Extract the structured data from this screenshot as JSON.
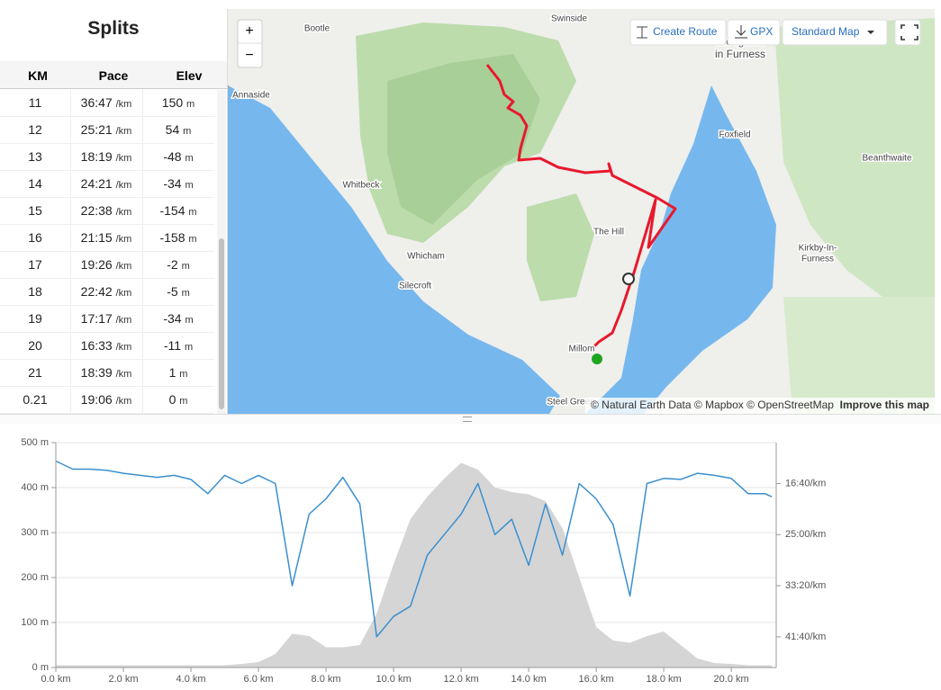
{
  "splits": {
    "title": "Splits",
    "columns": [
      "KM",
      "Pace",
      "Elev"
    ],
    "rows": [
      [
        "11",
        "36:47",
        "/km",
        "150",
        "m"
      ],
      [
        "12",
        "25:21",
        "/km",
        "54",
        "m"
      ],
      [
        "13",
        "18:19",
        "/km",
        "-48",
        "m"
      ],
      [
        "14",
        "24:21",
        "/km",
        "-34",
        "m"
      ],
      [
        "15",
        "22:38",
        "/km",
        "-154",
        "m"
      ],
      [
        "16",
        "21:15",
        "/km",
        "-158",
        "m"
      ],
      [
        "17",
        "19:26",
        "/km",
        "-2",
        "m"
      ],
      [
        "18",
        "22:42",
        "/km",
        "-5",
        "m"
      ],
      [
        "19",
        "17:17",
        "/km",
        "-34",
        "m"
      ],
      [
        "20",
        "16:33",
        "/km",
        "-11",
        "m"
      ],
      [
        "21",
        "18:39",
        "/km",
        "1",
        "m"
      ],
      [
        "0.21",
        "19:06",
        "/km",
        "0",
        "m"
      ]
    ]
  },
  "map": {
    "zoom_in": "+",
    "zoom_out": "−",
    "buttons": [
      "Create Route",
      "GPX",
      "Standard Map"
    ],
    "places": [
      "Swinside",
      "Bootle",
      "Annaside",
      "Whitbeck",
      "Whicham",
      "Silecroft",
      "The Hill",
      "Millom",
      "Steel Green",
      "Foxfield",
      "Beanthwaite",
      "Kirkby-In-",
      "Furness",
      "Broughton",
      "in Furness"
    ],
    "attribution": "© Natural Earth Data © Mapbox © OpenStreetMap",
    "improve": "Improve this map"
  },
  "chart_data": {
    "type": "line",
    "x": [
      0,
      0.5,
      1,
      1.5,
      2,
      2.5,
      3,
      3.5,
      4,
      4.5,
      5,
      5.5,
      6,
      6.5,
      7,
      7.5,
      8,
      8.5,
      9,
      9.5,
      10,
      10.5,
      11,
      11.5,
      12,
      12.5,
      13,
      13.5,
      14,
      14.5,
      15,
      15.5,
      16,
      16.5,
      17,
      17.5,
      18,
      18.5,
      19,
      19.5,
      20,
      20.5,
      21,
      21.2
    ],
    "series": [
      {
        "color": "#d5d5d5",
        "area": true,
        "values": [
          5,
          5,
          5,
          5,
          5,
          5,
          5,
          5,
          5,
          5,
          5,
          8,
          12,
          30,
          75,
          70,
          45,
          45,
          50,
          120,
          230,
          330,
          380,
          420,
          455,
          440,
          400,
          390,
          385,
          370,
          310,
          200,
          90,
          60,
          55,
          70,
          80,
          50,
          20,
          10,
          8,
          5,
          5,
          5
        ]
      },
      {
        "color": "#3a8fd0",
        "axis": "y2",
        "values": [
          780,
          860,
          860,
          870,
          900,
          920,
          940,
          920,
          960,
          1100,
          920,
          1000,
          920,
          1000,
          2000,
          1300,
          1150,
          940,
          1200,
          2500,
          2300,
          2200,
          1700,
          1500,
          1300,
          1000,
          1500,
          1350,
          1800,
          1200,
          1700,
          1000,
          1150,
          1400,
          2100,
          1000,
          950,
          960,
          900,
          920,
          950,
          1100,
          1100,
          1130
        ]
      }
    ],
    "xlim": [
      0,
      21.33
    ],
    "xticks": [
      {
        "value": 0,
        "label": "0.0 km"
      },
      {
        "value": 2,
        "label": "2.0 km"
      },
      {
        "value": 4,
        "label": "4.0 km"
      },
      {
        "value": 6,
        "label": "6.0 km"
      },
      {
        "value": 8,
        "label": "8.0 km"
      },
      {
        "value": 10,
        "label": "10.0 km"
      },
      {
        "value": 12,
        "label": "12.0 km"
      },
      {
        "value": 14,
        "label": "14.0 km"
      },
      {
        "value": 16,
        "label": "16.0 km"
      },
      {
        "value": 18,
        "label": "18.0 km"
      },
      {
        "value": 20,
        "label": "20.0 km"
      }
    ],
    "ylim": [
      0,
      500
    ],
    "yticks": [
      {
        "value": 0,
        "label": "0 m"
      },
      {
        "value": 100,
        "label": "100 m"
      },
      {
        "value": 200,
        "label": "200 m"
      },
      {
        "value": 300,
        "label": "300 m"
      },
      {
        "value": 400,
        "label": "400 m"
      },
      {
        "value": 500,
        "label": "500 m"
      }
    ],
    "y2lim": [
      2800,
      600
    ],
    "y2ticks": [
      {
        "value": 1000,
        "label": "16:40/km"
      },
      {
        "value": 1500,
        "label": "25:00/km"
      },
      {
        "value": 2000,
        "label": "33:20/km"
      },
      {
        "value": 2500,
        "label": "41:40/km"
      }
    ],
    "grid": true
  }
}
